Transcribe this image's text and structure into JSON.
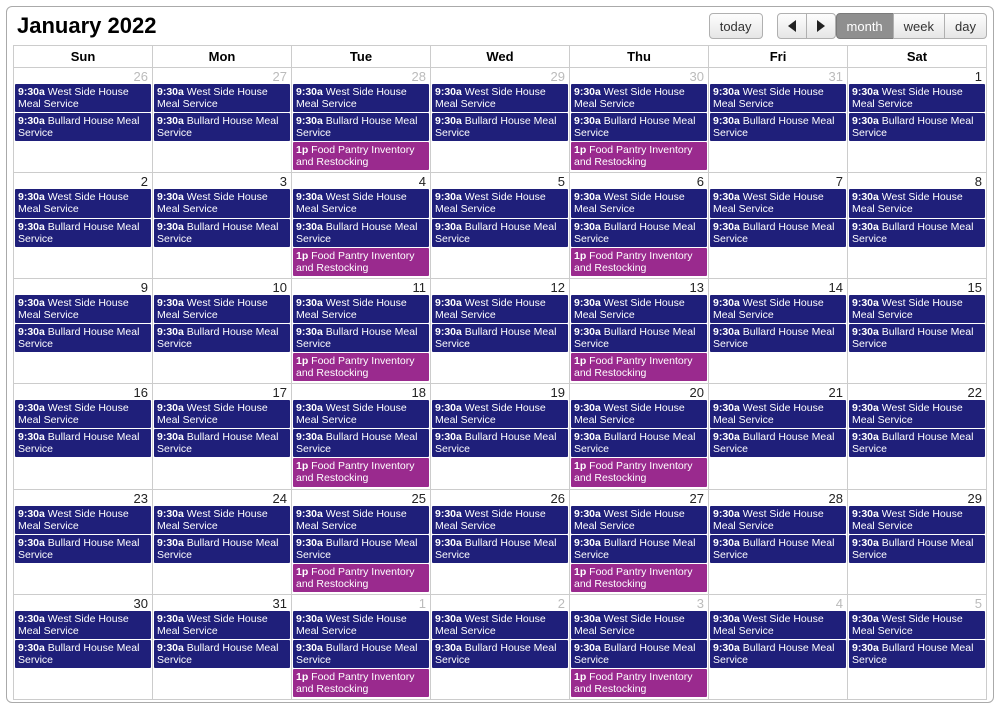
{
  "header": {
    "title": "January 2022",
    "today_label": "today",
    "views": {
      "month": "month",
      "week": "week",
      "day": "day"
    },
    "active_view": "month"
  },
  "colors": {
    "event_primary": "#1f1f7a",
    "event_secondary": "#9a2a8e",
    "border": "#cccccc",
    "other_month_text": "#bbbbbb"
  },
  "day_headers": [
    "Sun",
    "Mon",
    "Tue",
    "Wed",
    "Thu",
    "Fri",
    "Sat"
  ],
  "event_templates": {
    "west": {
      "time": "9:30a",
      "title": "West Side House Meal Service",
      "color": "navy"
    },
    "bullard": {
      "time": "9:30a",
      "title": "Bullard House Meal Service",
      "color": "navy"
    },
    "pantry": {
      "time": "1p",
      "title": "Food Pantry Inventory and Restocking",
      "color": "purple"
    }
  },
  "weeks": [
    [
      {
        "num": 26,
        "other": true,
        "events": [
          "west",
          "bullard"
        ]
      },
      {
        "num": 27,
        "other": true,
        "events": [
          "west",
          "bullard"
        ]
      },
      {
        "num": 28,
        "other": true,
        "events": [
          "west",
          "bullard",
          "pantry"
        ]
      },
      {
        "num": 29,
        "other": true,
        "events": [
          "west",
          "bullard"
        ]
      },
      {
        "num": 30,
        "other": true,
        "events": [
          "west",
          "bullard",
          "pantry"
        ]
      },
      {
        "num": 31,
        "other": true,
        "events": [
          "west",
          "bullard"
        ]
      },
      {
        "num": 1,
        "other": false,
        "events": [
          "west",
          "bullard"
        ]
      }
    ],
    [
      {
        "num": 2,
        "other": false,
        "events": [
          "west",
          "bullard"
        ]
      },
      {
        "num": 3,
        "other": false,
        "events": [
          "west",
          "bullard"
        ]
      },
      {
        "num": 4,
        "other": false,
        "events": [
          "west",
          "bullard",
          "pantry"
        ]
      },
      {
        "num": 5,
        "other": false,
        "events": [
          "west",
          "bullard"
        ]
      },
      {
        "num": 6,
        "other": false,
        "events": [
          "west",
          "bullard",
          "pantry"
        ]
      },
      {
        "num": 7,
        "other": false,
        "events": [
          "west",
          "bullard"
        ]
      },
      {
        "num": 8,
        "other": false,
        "events": [
          "west",
          "bullard"
        ]
      }
    ],
    [
      {
        "num": 9,
        "other": false,
        "events": [
          "west",
          "bullard"
        ]
      },
      {
        "num": 10,
        "other": false,
        "events": [
          "west",
          "bullard"
        ]
      },
      {
        "num": 11,
        "other": false,
        "events": [
          "west",
          "bullard",
          "pantry"
        ]
      },
      {
        "num": 12,
        "other": false,
        "events": [
          "west",
          "bullard"
        ]
      },
      {
        "num": 13,
        "other": false,
        "events": [
          "west",
          "bullard",
          "pantry"
        ]
      },
      {
        "num": 14,
        "other": false,
        "events": [
          "west",
          "bullard"
        ]
      },
      {
        "num": 15,
        "other": false,
        "events": [
          "west",
          "bullard"
        ]
      }
    ],
    [
      {
        "num": 16,
        "other": false,
        "events": [
          "west",
          "bullard"
        ]
      },
      {
        "num": 17,
        "other": false,
        "events": [
          "west",
          "bullard"
        ]
      },
      {
        "num": 18,
        "other": false,
        "events": [
          "west",
          "bullard",
          "pantry"
        ]
      },
      {
        "num": 19,
        "other": false,
        "events": [
          "west",
          "bullard"
        ]
      },
      {
        "num": 20,
        "other": false,
        "events": [
          "west",
          "bullard",
          "pantry"
        ]
      },
      {
        "num": 21,
        "other": false,
        "events": [
          "west",
          "bullard"
        ]
      },
      {
        "num": 22,
        "other": false,
        "events": [
          "west",
          "bullard"
        ]
      }
    ],
    [
      {
        "num": 23,
        "other": false,
        "events": [
          "west",
          "bullard"
        ]
      },
      {
        "num": 24,
        "other": false,
        "events": [
          "west",
          "bullard"
        ]
      },
      {
        "num": 25,
        "other": false,
        "events": [
          "west",
          "bullard",
          "pantry"
        ]
      },
      {
        "num": 26,
        "other": false,
        "events": [
          "west",
          "bullard"
        ]
      },
      {
        "num": 27,
        "other": false,
        "events": [
          "west",
          "bullard",
          "pantry"
        ]
      },
      {
        "num": 28,
        "other": false,
        "events": [
          "west",
          "bullard"
        ]
      },
      {
        "num": 29,
        "other": false,
        "events": [
          "west",
          "bullard"
        ]
      }
    ],
    [
      {
        "num": 30,
        "other": false,
        "events": [
          "west",
          "bullard"
        ]
      },
      {
        "num": 31,
        "other": false,
        "events": [
          "west",
          "bullard"
        ]
      },
      {
        "num": 1,
        "other": true,
        "events": [
          "west",
          "bullard",
          "pantry"
        ]
      },
      {
        "num": 2,
        "other": true,
        "events": [
          "west",
          "bullard"
        ]
      },
      {
        "num": 3,
        "other": true,
        "events": [
          "west",
          "bullard",
          "pantry"
        ]
      },
      {
        "num": 4,
        "other": true,
        "events": [
          "west",
          "bullard"
        ]
      },
      {
        "num": 5,
        "other": true,
        "events": [
          "west",
          "bullard"
        ]
      }
    ]
  ]
}
